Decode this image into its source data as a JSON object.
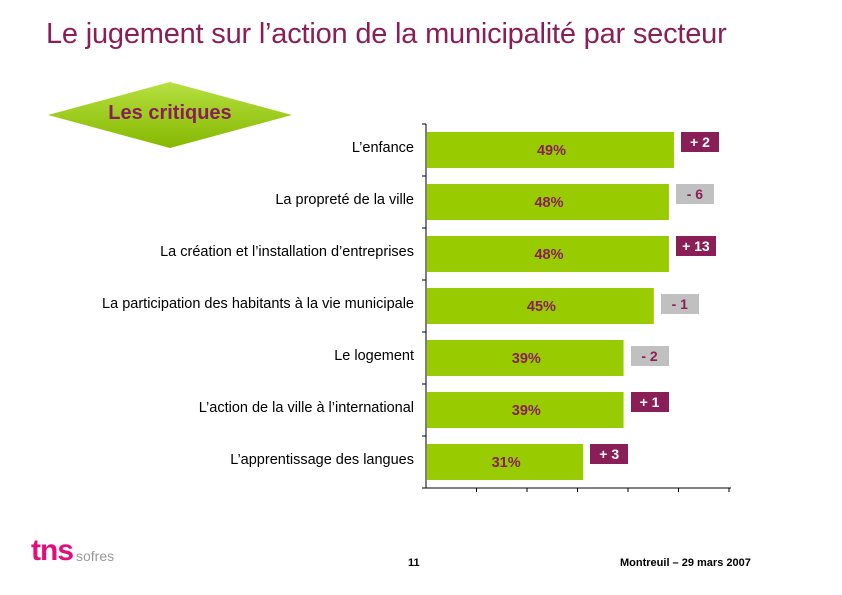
{
  "page": {
    "title": "Le jugement sur l’action de la municipalité par secteur",
    "badge_label": "Les critiques",
    "logo_tns": "tns",
    "logo_sofres": "sofres",
    "page_number": "11",
    "footer_date": "Montreuil – 29 mars 2007"
  },
  "colors": {
    "bar": "#99cc00",
    "title": "#8a1f57",
    "positive_box": "#8a1f57",
    "negative_box": "#c0c0c0",
    "logo": "#e20f7a"
  },
  "chart_data": {
    "type": "bar",
    "orientation": "horizontal",
    "categories": [
      "L’enfance",
      "La propreté de la ville",
      "La création et l’installation d’entreprises",
      "La participation des habitants à la vie municipale",
      "Le logement",
      "L’action de la ville à l’international",
      "L’apprentissage des langues"
    ],
    "values": [
      49,
      48,
      48,
      45,
      39,
      39,
      31
    ],
    "value_labels": [
      "49%",
      "48%",
      "48%",
      "45%",
      "39%",
      "39%",
      "31%"
    ],
    "changes": [
      "+ 2",
      "- 6",
      "+ 13",
      "- 1",
      "- 2",
      "+ 1",
      "+ 3"
    ],
    "change_signs": [
      "positive",
      "negative",
      "positive",
      "negative",
      "negative",
      "positive",
      "positive"
    ],
    "xlim": [
      0,
      60
    ],
    "grid": false
  }
}
